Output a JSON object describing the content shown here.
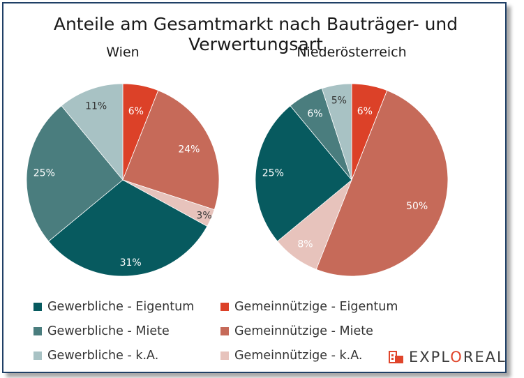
{
  "title": "Anteile am Gesamtmarkt nach Bauträger- und Verwertungsart",
  "brand": {
    "pre": "EXPL",
    "accent": "O",
    "post": "REAL"
  },
  "colors": {
    "gewerblich_eigentum": "#075a5f",
    "gewerblich_miete": "#4a7d7e",
    "gewerblich_ka": "#a8c2c4",
    "gemein_eigentum": "#dc4128",
    "gemein_miete": "#c66a59",
    "gemein_ka": "#e7c3bc",
    "brand_accent": "#e0452b"
  },
  "legend": [
    {
      "label": "Gewerbliche - Eigentum",
      "color_key": "gewerblich_eigentum"
    },
    {
      "label": "Gemeinnützige - Eigentum",
      "color_key": "gemein_eigentum"
    },
    {
      "label": "Gewerbliche - Miete",
      "color_key": "gewerblich_miete"
    },
    {
      "label": "Gemeinnützige - Miete",
      "color_key": "gemein_miete"
    },
    {
      "label": "Gewerbliche - k.A.",
      "color_key": "gewerblich_ka"
    },
    {
      "label": "Gemeinnützige - k.A.",
      "color_key": "gemein_ka"
    }
  ],
  "chart_data": [
    {
      "type": "pie",
      "title": "Wien",
      "slices": [
        {
          "label": "Gemeinnützige - Eigentum",
          "value": 6,
          "display": "6%",
          "color_key": "gemein_eigentum"
        },
        {
          "label": "Gemeinnützige - Miete",
          "value": 24,
          "display": "24%",
          "color_key": "gemein_miete"
        },
        {
          "label": "Gemeinnützige - k.A.",
          "value": 3,
          "display": "3%",
          "color_key": "gemein_ka"
        },
        {
          "label": "Gewerbliche - Eigentum",
          "value": 31,
          "display": "31%",
          "color_key": "gewerblich_eigentum"
        },
        {
          "label": "Gewerbliche - Miete",
          "value": 25,
          "display": "25%",
          "color_key": "gewerblich_miete"
        },
        {
          "label": "Gewerbliche - k.A.",
          "value": 11,
          "display": "11%",
          "color_key": "gewerblich_ka"
        }
      ]
    },
    {
      "type": "pie",
      "title": "Niederösterreich",
      "slices": [
        {
          "label": "Gemeinnützige - Eigentum",
          "value": 6,
          "display": "6%",
          "color_key": "gemein_eigentum"
        },
        {
          "label": "Gemeinnützige - Miete",
          "value": 50,
          "display": "50%",
          "color_key": "gemein_miete"
        },
        {
          "label": "Gemeinnützige - k.A.",
          "value": 8,
          "display": "8%",
          "color_key": "gemein_ka"
        },
        {
          "label": "Gewerbliche - Eigentum",
          "value": 25,
          "display": "25%",
          "color_key": "gewerblich_eigentum"
        },
        {
          "label": "Gewerbliche - Miete",
          "value": 6,
          "display": "6%",
          "color_key": "gewerblich_miete"
        },
        {
          "label": "Gewerbliche - k.A.",
          "value": 5,
          "display": "5%",
          "color_key": "gewerblich_ka"
        }
      ]
    }
  ]
}
